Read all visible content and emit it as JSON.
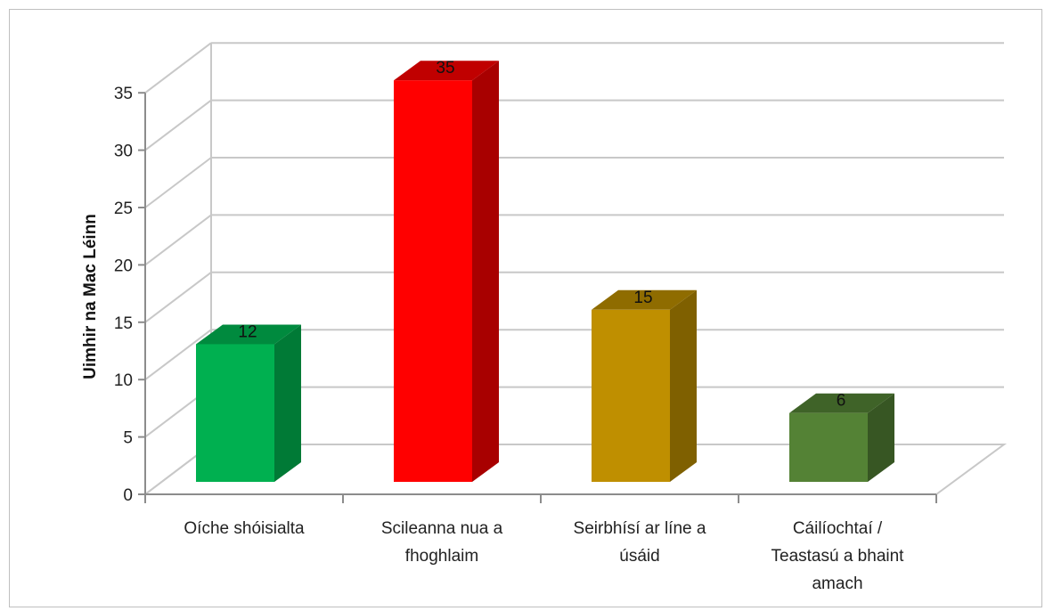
{
  "chart_data": {
    "type": "bar",
    "title": "",
    "xlabel": "",
    "ylabel": "Uimhir na Mac Léinn",
    "ylim": [
      0,
      35
    ],
    "yticks": [
      0,
      5,
      10,
      15,
      20,
      25,
      30,
      35
    ],
    "grid": true,
    "style": "3d-column",
    "categories": [
      "Oíche shóisialta",
      "Scileanna nua a fhoghlaim",
      "Seirbhísí ar líne a úsáid",
      "Cáilíochtaí / Teastasú a bhaint amach"
    ],
    "category_lines": [
      [
        "Oíche shóisialta"
      ],
      [
        "Scileanna nua a",
        "fhoghlaim"
      ],
      [
        "Seirbhísí ar líne a",
        "úsáid"
      ],
      [
        "Cáilíochtaí /",
        "Teastasú a bhaint",
        "amach"
      ]
    ],
    "values": [
      12,
      35,
      15,
      6
    ],
    "colors": [
      {
        "front": "#00b050",
        "side": "#007a36",
        "top": "#008a3e"
      },
      {
        "front": "#ff0000",
        "side": "#a80000",
        "top": "#c00000"
      },
      {
        "front": "#bf8f00",
        "side": "#7f6000",
        "top": "#8f6c00"
      },
      {
        "front": "#548235",
        "side": "#375623",
        "top": "#3f6328"
      }
    ]
  }
}
